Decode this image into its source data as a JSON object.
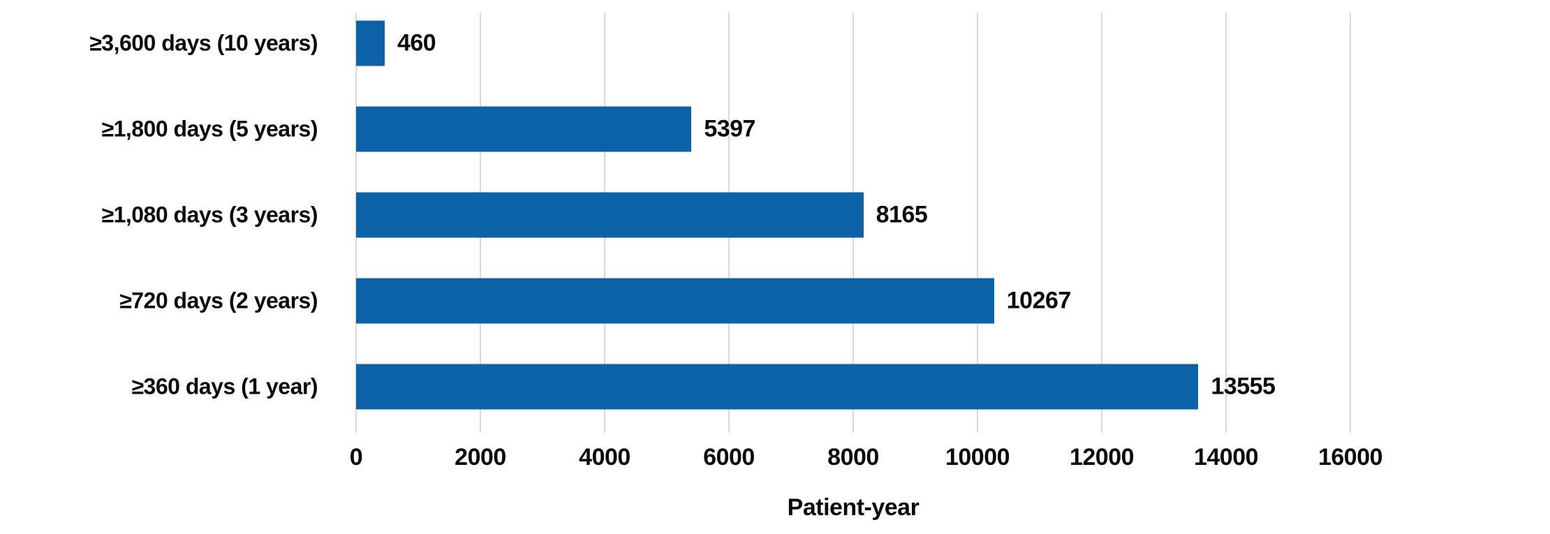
{
  "chart_data": {
    "type": "bar",
    "orientation": "horizontal",
    "title": "",
    "xlabel": "Patient-year",
    "ylabel": "",
    "xlim": [
      0,
      16000
    ],
    "xticks": [
      0,
      2000,
      4000,
      6000,
      8000,
      10000,
      12000,
      14000,
      16000
    ],
    "grid": "vertical",
    "legend": "none",
    "categories": [
      "≥3,600 days (10 years)",
      "≥1,800 days (5 years)",
      "≥1,080 days (3 years)",
      "≥720 days (2 years)",
      "≥360 days (1 year)"
    ],
    "values": [
      460,
      5397,
      8165,
      10267,
      13555
    ],
    "value_labels": [
      "460",
      "5397",
      "8165",
      "10267",
      "13555"
    ],
    "bar_color": "#0e62a8",
    "gridline_color": "#d8d8d8",
    "text_color": "#0a0a0a",
    "background_color": "#ffffff"
  }
}
